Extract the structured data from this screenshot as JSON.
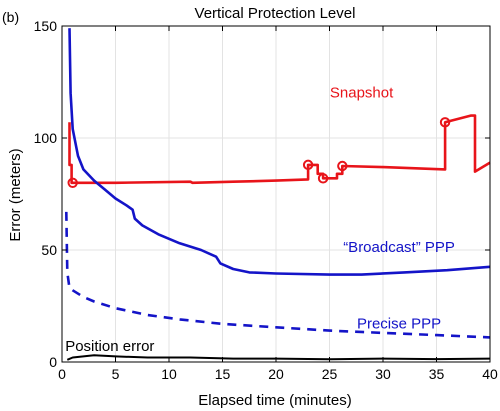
{
  "panel_label": "(b)",
  "chart_data": {
    "type": "line",
    "title": "Vertical Protection Level",
    "xlabel": "Elapsed time (minutes)",
    "ylabel": "Error (meters)",
    "xlim": [
      0,
      40
    ],
    "ylim": [
      0,
      150
    ],
    "xticks": [
      0,
      5,
      10,
      15,
      20,
      25,
      30,
      35,
      40
    ],
    "yticks": [
      0,
      50,
      100,
      150
    ],
    "xtick_labels": [
      "0",
      "5",
      "10",
      "15",
      "20",
      "25",
      "30",
      "35",
      "40"
    ],
    "ytick_labels": [
      "0",
      "50",
      "100",
      "150"
    ],
    "grid": true,
    "colors": {
      "snapshot": "#e8141a",
      "ppp": "#1414c8",
      "error": "#000000",
      "grid": "#e3e3e3"
    },
    "annotations": [
      {
        "id": "snapshot",
        "text": "Snapshot",
        "x": 28,
        "y": 118
      },
      {
        "id": "broadcast",
        "text": "“Broadcast” PPP",
        "x": 31.5,
        "y": 49
      },
      {
        "id": "precise",
        "text": "Precise PPP",
        "x": 31.5,
        "y": 15
      },
      {
        "id": "error",
        "text": "Position error",
        "x": 0.3,
        "y": 5
      }
    ],
    "series": [
      {
        "id": "snapshot",
        "style": "solid-step",
        "points": [
          [
            0.7,
            107
          ],
          [
            0.7,
            88
          ],
          [
            0.9,
            88
          ],
          [
            0.9,
            80
          ],
          [
            1,
            80
          ],
          [
            5,
            80
          ],
          [
            12,
            80.5
          ],
          [
            12.2,
            80
          ],
          [
            16,
            80.5
          ],
          [
            20,
            81
          ],
          [
            23,
            81.5
          ],
          [
            23,
            88
          ],
          [
            23.9,
            88
          ],
          [
            23.9,
            84
          ],
          [
            24.4,
            84
          ],
          [
            24.4,
            82
          ],
          [
            25.7,
            82
          ],
          [
            25.7,
            84
          ],
          [
            26.2,
            84
          ],
          [
            26.2,
            87.5
          ],
          [
            30,
            87
          ],
          [
            35.8,
            86
          ],
          [
            35.8,
            107
          ],
          [
            38.2,
            110
          ],
          [
            38.6,
            110
          ],
          [
            38.6,
            85
          ],
          [
            40,
            89
          ]
        ],
        "markers": [
          [
            1,
            80
          ],
          [
            23,
            88
          ],
          [
            24.4,
            82
          ],
          [
            26.2,
            87.5
          ],
          [
            35.8,
            107
          ]
        ]
      },
      {
        "id": "broadcast",
        "style": "solid",
        "points": [
          [
            0.7,
            149
          ],
          [
            0.8,
            120
          ],
          [
            1,
            104
          ],
          [
            1.5,
            92
          ],
          [
            2,
            86
          ],
          [
            3,
            81
          ],
          [
            4,
            77
          ],
          [
            5,
            73
          ],
          [
            6,
            70
          ],
          [
            6.6,
            68
          ],
          [
            6.8,
            64
          ],
          [
            7.5,
            61
          ],
          [
            9,
            57
          ],
          [
            11,
            53
          ],
          [
            13,
            50
          ],
          [
            14.4,
            47
          ],
          [
            14.8,
            44
          ],
          [
            16,
            41.5
          ],
          [
            17.5,
            40
          ],
          [
            20,
            39.5
          ],
          [
            25,
            39
          ],
          [
            28,
            39
          ],
          [
            32,
            40
          ],
          [
            36,
            41
          ],
          [
            40,
            42.5
          ]
        ]
      },
      {
        "id": "precise",
        "style": "dashed",
        "points": [
          [
            0.4,
            67
          ],
          [
            0.5,
            40
          ],
          [
            0.7,
            33
          ],
          [
            1,
            32
          ],
          [
            2,
            29
          ],
          [
            3,
            27
          ],
          [
            5,
            24
          ],
          [
            8,
            21
          ],
          [
            11,
            19
          ],
          [
            15,
            17
          ],
          [
            20,
            15.5
          ],
          [
            25,
            14
          ],
          [
            30,
            13
          ],
          [
            35,
            12
          ],
          [
            40,
            11
          ]
        ]
      },
      {
        "id": "error",
        "style": "solid",
        "points": [
          [
            0.5,
            1
          ],
          [
            1,
            2
          ],
          [
            2,
            2.5
          ],
          [
            3,
            3
          ],
          [
            5,
            2.5
          ],
          [
            8,
            2
          ],
          [
            12,
            2
          ],
          [
            16,
            1.5
          ],
          [
            20,
            1.5
          ],
          [
            25,
            1.2
          ],
          [
            30,
            1.5
          ],
          [
            35,
            1.3
          ],
          [
            40,
            1.5
          ]
        ]
      }
    ]
  }
}
